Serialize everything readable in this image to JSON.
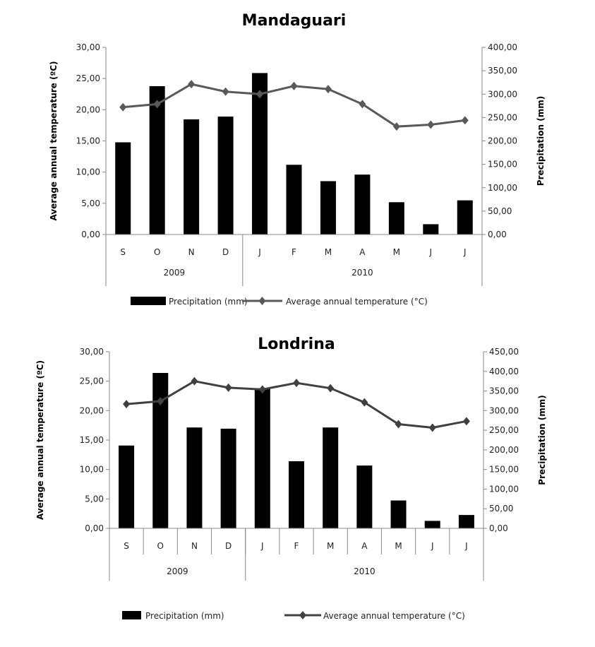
{
  "chart_data": [
    {
      "type": "bar+line",
      "title": "Mandaguari",
      "ylabel_left": "Average annual temperature (ºC)",
      "ylabel_right": "Precipitation (mm)",
      "ylim_left": [
        0,
        30
      ],
      "ylim_right": [
        0,
        400
      ],
      "left_ticks": [
        "0,00",
        "5,00",
        "10,00",
        "15,00",
        "20,00",
        "25,00",
        "30,00"
      ],
      "right_ticks": [
        "0,00",
        "50,00",
        "100,00",
        "150,00",
        "200,00",
        "250,00",
        "300,00",
        "350,00",
        "400,00"
      ],
      "categories": [
        "S",
        "O",
        "N",
        "D",
        "J",
        "F",
        "M",
        "A",
        "M",
        "J",
        "J"
      ],
      "years": [
        {
          "label": "2009",
          "span": 4
        },
        {
          "label": "2010",
          "span": 7
        }
      ],
      "series": [
        {
          "name": "Precipitation (mm)",
          "kind": "bar",
          "axis": "right",
          "color": "#000000",
          "values": [
            197,
            317,
            246,
            252,
            345,
            149,
            114,
            128,
            69,
            22,
            73
          ]
        },
        {
          "name": "Average annual temperature (°C)",
          "kind": "line",
          "axis": "left",
          "color": "#595959",
          "values": [
            20.4,
            20.9,
            24.1,
            22.9,
            22.5,
            23.8,
            23.3,
            20.9,
            17.3,
            17.6,
            18.3
          ]
        }
      ],
      "legend": "bottom",
      "grid": false,
      "month_separators": false
    },
    {
      "type": "bar+line",
      "title": "Londrina",
      "ylabel_left": "Average annual temperature (ºC)",
      "ylabel_right": "Precipitation (mm)",
      "ylim_left": [
        0,
        30
      ],
      "ylim_right": [
        0,
        450
      ],
      "left_ticks": [
        "0,00",
        "5,00",
        "10,00",
        "15,00",
        "20,00",
        "25,00",
        "30,00"
      ],
      "right_ticks": [
        "0,00",
        "50,00",
        "100,00",
        "150,00",
        "200,00",
        "250,00",
        "300,00",
        "350,00",
        "400,00",
        "450,00"
      ],
      "categories": [
        "S",
        "O",
        "N",
        "D",
        "J",
        "F",
        "M",
        "A",
        "M",
        "J",
        "J"
      ],
      "years": [
        {
          "label": "2009",
          "span": 4
        },
        {
          "label": "2010",
          "span": 7
        }
      ],
      "series": [
        {
          "name": "Precipitation (mm)",
          "kind": "bar",
          "axis": "right",
          "color": "#000000",
          "values": [
            211,
            396,
            257,
            254,
            357,
            171,
            257,
            160,
            71,
            19,
            34
          ]
        },
        {
          "name": "Average annual temperature (°C)",
          "kind": "line",
          "axis": "left",
          "color": "#404040",
          "values": [
            21.1,
            21.6,
            25.0,
            23.9,
            23.6,
            24.7,
            23.8,
            21.4,
            17.7,
            17.1,
            18.2
          ]
        }
      ],
      "legend": "bottom",
      "grid": false,
      "month_separators": true
    }
  ]
}
